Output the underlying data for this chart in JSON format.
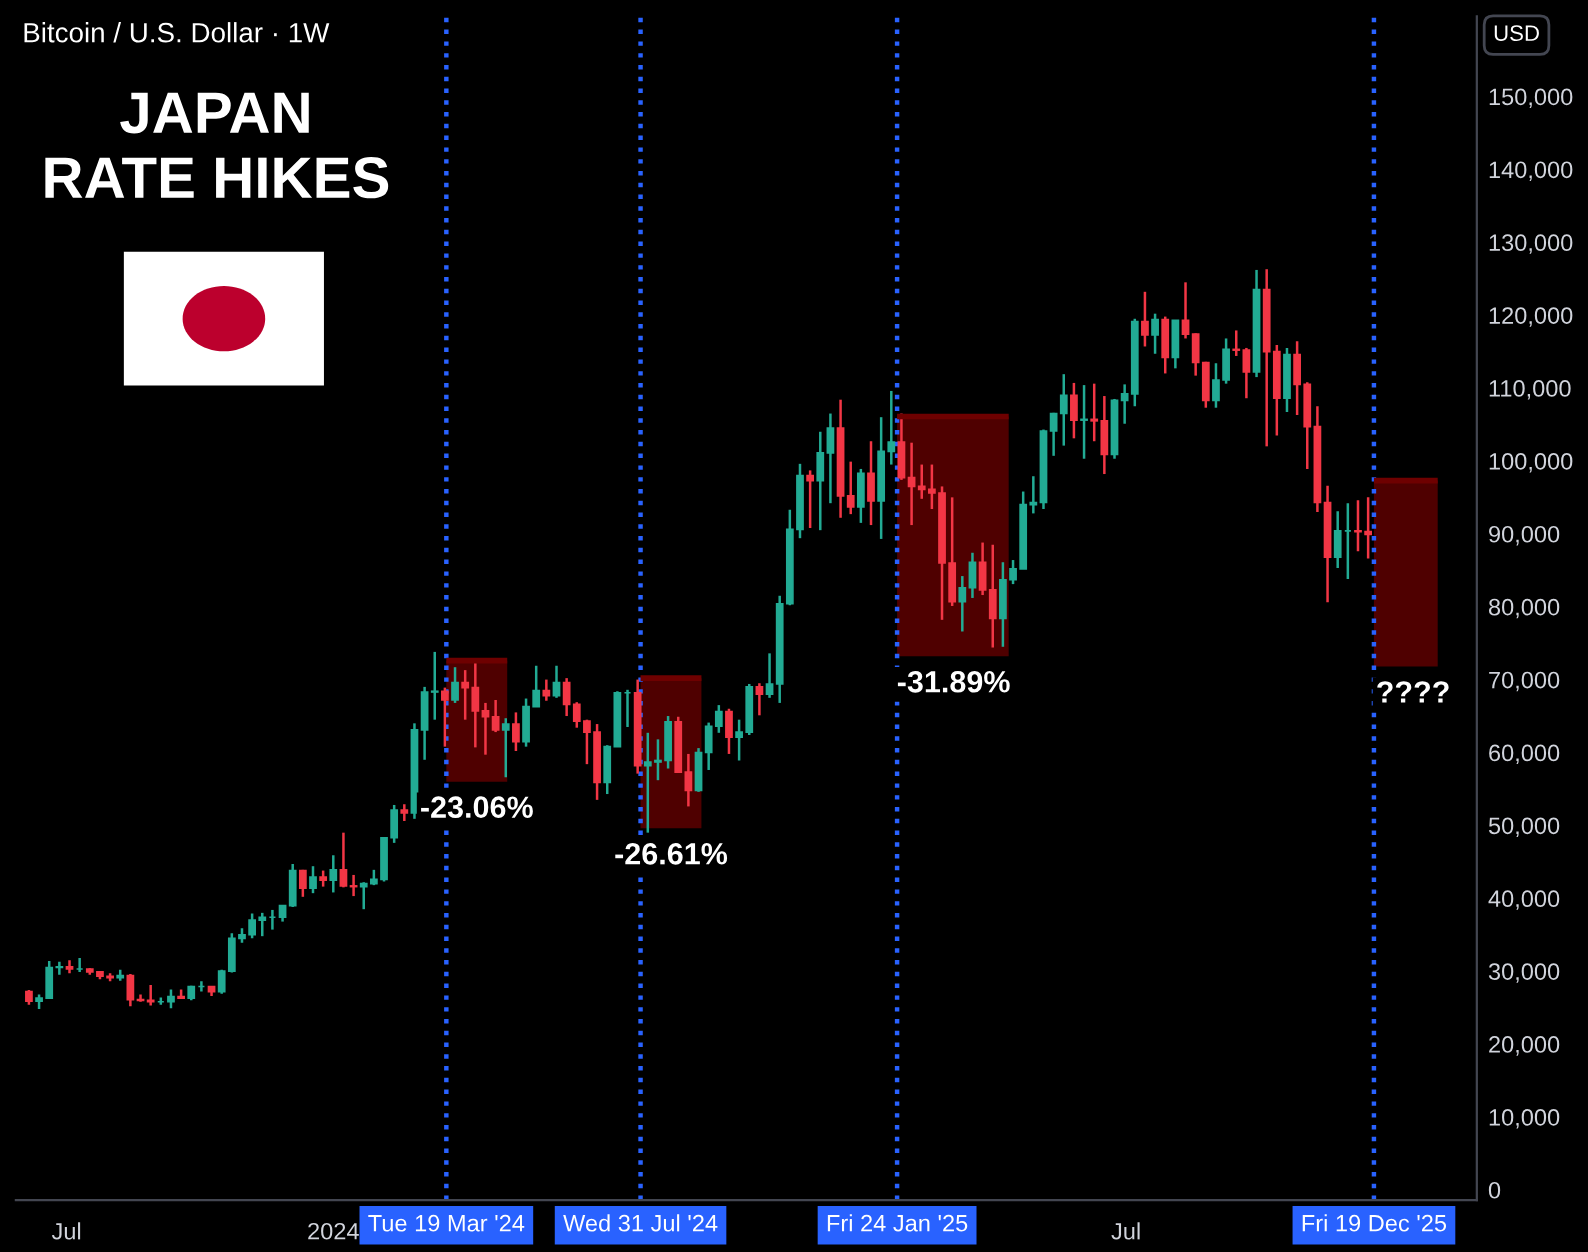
{
  "chart_data": {
    "type": "candlestick",
    "title": "Bitcoin / U.S. Dollar · 1W",
    "annotations": [
      "JAPAN\nRATE HIKES",
      "USD",
      {
        "text": "-23.06%",
        "x": "2024-04-09",
        "y": 56000
      },
      {
        "text": "-26.61%",
        "x": "2024-08-21",
        "y": 49600
      },
      {
        "text": "-31.89%",
        "x": "2025-03-04",
        "y": 73200
      },
      {
        "text": "????",
        "x": "2026-01-15",
        "y": 71800
      }
    ],
    "xlim": [
      "2023-05-27",
      "2026-02-28"
    ],
    "xticks": [
      {
        "value": "2023-07-01",
        "label": "Jul"
      },
      {
        "value": "2024-01-01",
        "label": "2024"
      },
      {
        "value": "2025-07-01",
        "label": "Jul"
      }
    ],
    "ylim": [
      -1400,
      161000
    ],
    "yticks": [
      0,
      {
        "value": 10000,
        "label": "10,000"
      },
      {
        "value": 20000,
        "label": "20,000"
      },
      {
        "value": 30000,
        "label": "30,000"
      },
      {
        "value": 40000,
        "label": "40,000"
      },
      {
        "value": 50000,
        "label": "50,000"
      },
      {
        "value": 60000,
        "label": "60,000"
      },
      {
        "value": 70000,
        "label": "70,000"
      },
      {
        "value": 80000,
        "label": "80,000"
      },
      {
        "value": 90000,
        "label": "90,000"
      },
      {
        "value": 100000,
        "label": "100,000"
      },
      {
        "value": 110000,
        "label": "110,000"
      },
      {
        "value": 120000,
        "label": "120,000"
      },
      {
        "value": 130000,
        "label": "130,000"
      },
      {
        "value": 140000,
        "label": "140,000"
      },
      {
        "value": 150000,
        "label": "150,000"
      }
    ],
    "grid": false,
    "ref_lines": [
      {
        "axis": "x",
        "value": "2024-03-19",
        "label": "Tue 19 Mar '24",
        "color": "#2962ff",
        "line_style": "dotted"
      },
      {
        "axis": "x",
        "value": "2024-07-31",
        "label": "Wed 31 Jul '24",
        "color": "#2962ff",
        "line_style": "dotted"
      },
      {
        "axis": "x",
        "value": "2025-01-24",
        "label": "Fri 24 Jan '25",
        "color": "#2962ff",
        "line_style": "dotted"
      },
      {
        "axis": "x",
        "value": "2025-12-19",
        "label": "Fri 19 Dec '25",
        "color": "#2962ff",
        "line_style": "dotted"
      }
    ],
    "series": [
      {
        "type": "line",
        "color": "#6e0000",
        "x": [
          "2024-03-19",
          "2024-04-30"
        ],
        "values": [
          72600,
          72600
        ],
        "lower": [
          56000,
          56000
        ],
        "upper": [
          72600,
          72600
        ]
      },
      {
        "type": "line",
        "color": "#6e0000",
        "x": [
          "2024-07-31",
          "2024-09-11"
        ],
        "values": [
          70200,
          70200
        ],
        "lower": [
          49600,
          49600
        ],
        "upper": [
          70200,
          70200
        ]
      },
      {
        "type": "line",
        "color": "#6e0000",
        "x": [
          "2025-01-24",
          "2025-04-11"
        ],
        "values": [
          106100,
          106100
        ],
        "lower": [
          73200,
          73200
        ],
        "upper": [
          106100,
          106100
        ]
      },
      {
        "type": "line",
        "color": "#6e0000",
        "x": [
          "2025-12-19",
          "2026-02-01"
        ],
        "values": [
          97300,
          97300
        ],
        "lower": [
          71800,
          71800
        ],
        "upper": [
          97300,
          97300
        ]
      },
      {
        "colors": [
          "#f23645",
          "#22ab94",
          "#22ab94",
          "#22ab94",
          "#f23645",
          "#22ab94",
          "#f23645",
          "#f23645",
          "#f23645",
          "#22ab94",
          "#f23645",
          "#f23645",
          "#f23645",
          "#22ab94",
          "#22ab94",
          "#f23645",
          "#22ab94",
          "#22ab94",
          "#f23645",
          "#22ab94",
          "#22ab94",
          "#22ab94",
          "#22ab94",
          "#22ab94",
          "#22ab94",
          "#22ab94",
          "#22ab94",
          "#f23645",
          "#22ab94",
          "#f23645",
          "#22ab94",
          "#f23645",
          "#f23645",
          "#22ab94",
          "#22ab94",
          "#22ab94",
          "#22ab94",
          "#f23645",
          "#22ab94",
          "#22ab94",
          "#22ab94",
          "#f23645",
          "#22ab94",
          "#f23645",
          "#f23645",
          "#f23645",
          "#f23645",
          "#22ab94",
          "#f23645",
          "#22ab94",
          "#22ab94",
          "#f23645",
          "#22ab94",
          "#f23645",
          "#f23645",
          "#f23645",
          "#f23645",
          "#22ab94",
          "#22ab94",
          "#22ab94",
          "#f23645",
          "#22ab94",
          "#22ab94",
          "#22ab94",
          "#f23645",
          "#f23645",
          "#22ab94",
          "#22ab94",
          "#22ab94",
          "#f23645",
          "#22ab94",
          "#22ab94",
          "#f23645",
          "#22ab94",
          "#22ab94",
          "#22ab94",
          "#22ab94",
          "#f23645",
          "#22ab94",
          "#22ab94",
          "#f23645",
          "#f23645",
          "#22ab94",
          "#f23645",
          "#22ab94",
          "#22ab94",
          "#f23645",
          "#f23645",
          "#f23645",
          "#f23645",
          "#f23645",
          "#f23645",
          "#22ab94",
          "#22ab94",
          "#f23645",
          "#f23645",
          "#22ab94",
          "#22ab94",
          "#22ab94",
          "#22ab94",
          "#22ab94",
          "#22ab94",
          "#22ab94",
          "#f23645",
          "#22ab94",
          "#f23645",
          "#f23645",
          "#22ab94",
          "#22ab94",
          "#22ab94",
          "#f23645",
          "#22ab94",
          "#f23645",
          "#22ab94",
          "#f23645",
          "#f23645",
          "#f23645",
          "#22ab94",
          "#22ab94",
          "#f23645",
          "#f23645",
          "#22ab94",
          "#f23645",
          "#f23645",
          "#22ab94",
          "#f23645",
          "#f23645",
          "#f23645",
          "#f23645",
          "#22ab94",
          "#22ab94",
          "#f23645",
          "#f23645"
        ],
        "x": [
          "2023-06-05",
          "2023-06-12",
          "2023-06-19",
          "2023-06-26",
          "2023-07-03",
          "2023-07-10",
          "2023-07-17",
          "2023-07-24",
          "2023-07-31",
          "2023-08-07",
          "2023-08-14",
          "2023-08-21",
          "2023-08-28",
          "2023-09-04",
          "2023-09-11",
          "2023-09-18",
          "2023-09-25",
          "2023-10-02",
          "2023-10-09",
          "2023-10-16",
          "2023-10-23",
          "2023-10-30",
          "2023-11-06",
          "2023-11-13",
          "2023-11-20",
          "2023-11-27",
          "2023-12-04",
          "2023-12-11",
          "2023-12-18",
          "2023-12-25",
          "2024-01-01",
          "2024-01-08",
          "2024-01-15",
          "2024-01-22",
          "2024-01-29",
          "2024-02-05",
          "2024-02-12",
          "2024-02-19",
          "2024-02-26",
          "2024-03-04",
          "2024-03-11",
          "2024-03-18",
          "2024-03-25",
          "2024-04-01",
          "2024-04-08",
          "2024-04-15",
          "2024-04-22",
          "2024-04-29",
          "2024-05-06",
          "2024-05-13",
          "2024-05-20",
          "2024-05-27",
          "2024-06-03",
          "2024-06-10",
          "2024-06-17",
          "2024-06-24",
          "2024-07-01",
          "2024-07-08",
          "2024-07-15",
          "2024-07-22",
          "2024-07-29",
          "2024-08-05",
          "2024-08-12",
          "2024-08-19",
          "2024-08-26",
          "2024-09-02",
          "2024-09-09",
          "2024-09-16",
          "2024-09-23",
          "2024-09-30",
          "2024-10-07",
          "2024-10-14",
          "2024-10-21",
          "2024-10-28",
          "2024-11-04",
          "2024-11-11",
          "2024-11-18",
          "2024-11-25",
          "2024-12-02",
          "2024-12-09",
          "2024-12-16",
          "2024-12-23",
          "2024-12-30",
          "2025-01-06",
          "2025-01-13",
          "2025-01-20",
          "2025-01-27",
          "2025-02-03",
          "2025-02-10",
          "2025-02-17",
          "2025-02-24",
          "2025-03-03",
          "2025-03-10",
          "2025-03-17",
          "2025-03-24",
          "2025-03-31",
          "2025-04-07",
          "2025-04-14",
          "2025-04-21",
          "2025-04-28",
          "2025-05-05",
          "2025-05-12",
          "2025-05-19",
          "2025-05-26",
          "2025-06-02",
          "2025-06-09",
          "2025-06-16",
          "2025-06-23",
          "2025-06-30",
          "2025-07-07",
          "2025-07-14",
          "2025-07-21",
          "2025-07-28",
          "2025-08-04",
          "2025-08-11",
          "2025-08-18",
          "2025-08-25",
          "2025-09-01",
          "2025-09-08",
          "2025-09-15",
          "2025-09-22",
          "2025-09-29",
          "2025-10-06",
          "2025-10-13",
          "2025-10-20",
          "2025-10-27",
          "2025-11-03",
          "2025-11-10",
          "2025-11-17",
          "2025-11-24",
          "2025-12-01",
          "2025-12-08",
          "2025-12-15"
        ],
        "ohlc": [
          [
            27200,
            27400,
            25400,
            25900
          ],
          [
            25900,
            26800,
            24800,
            26300
          ],
          [
            26300,
            31400,
            26300,
            30500
          ],
          [
            30500,
            31300,
            29500,
            30600
          ],
          [
            30600,
            31500,
            29700,
            30300
          ],
          [
            30300,
            31800,
            29900,
            30300
          ],
          [
            30300,
            30400,
            29500,
            29900
          ],
          [
            29900,
            30000,
            28900,
            29300
          ],
          [
            29300,
            29700,
            28600,
            29100
          ],
          [
            29100,
            30200,
            28700,
            29400
          ],
          [
            29400,
            29600,
            25200,
            26100
          ],
          [
            26100,
            26800,
            25800,
            26000
          ],
          [
            26000,
            28100,
            25300,
            25800
          ],
          [
            25800,
            26400,
            25400,
            25800
          ],
          [
            25800,
            27500,
            24900,
            26500
          ],
          [
            26500,
            27500,
            26300,
            26300
          ],
          [
            26300,
            28000,
            26000,
            27900
          ],
          [
            27900,
            28600,
            27200,
            27900
          ],
          [
            27900,
            27900,
            26600,
            27200
          ],
          [
            27200,
            30200,
            26900,
            30000
          ],
          [
            30000,
            35200,
            29800,
            34500
          ],
          [
            34500,
            35900,
            33900,
            35000
          ],
          [
            35000,
            37900,
            34500,
            37000
          ],
          [
            37000,
            38000,
            34800,
            37400
          ],
          [
            37400,
            38400,
            35700,
            37400
          ],
          [
            37400,
            39000,
            36800,
            39000
          ],
          [
            39000,
            44700,
            38800,
            43800
          ],
          [
            43800,
            43900,
            40200,
            41400
          ],
          [
            41400,
            44400,
            40700,
            42900
          ],
          [
            42900,
            43800,
            41600,
            42500
          ],
          [
            42500,
            45900,
            40800,
            43900
          ],
          [
            43900,
            49000,
            41500,
            41700
          ],
          [
            41700,
            43200,
            40300,
            41600
          ],
          [
            41600,
            42200,
            38500,
            42000
          ],
          [
            42000,
            43900,
            41800,
            42600
          ],
          [
            42600,
            48300,
            42300,
            48300
          ],
          [
            48300,
            52800,
            47600,
            52100
          ],
          [
            52100,
            52900,
            50600,
            51700
          ],
          [
            51700,
            64000,
            50900,
            63100
          ],
          [
            63100,
            69000,
            59000,
            68300
          ],
          [
            68300,
            73800,
            64500,
            68400
          ],
          [
            68400,
            68900,
            60800,
            67200
          ],
          [
            67200,
            71700,
            66800,
            69600
          ],
          [
            69600,
            71300,
            64500,
            68900
          ],
          [
            68900,
            72700,
            60700,
            65700
          ],
          [
            65700,
            66800,
            59700,
            64900
          ],
          [
            64900,
            67200,
            62800,
            63100
          ],
          [
            63100,
            64700,
            56600,
            63900
          ],
          [
            63900,
            65500,
            60200,
            61500
          ],
          [
            61500,
            67400,
            60800,
            66300
          ],
          [
            66300,
            71900,
            66300,
            68500
          ],
          [
            68500,
            70000,
            67100,
            67800
          ],
          [
            67800,
            71900,
            67500,
            69600
          ],
          [
            69600,
            70200,
            65000,
            66600
          ],
          [
            66600,
            66900,
            63400,
            64300
          ],
          [
            64300,
            64500,
            58400,
            62800
          ],
          [
            62800,
            63900,
            53500,
            55900
          ],
          [
            55900,
            61000,
            54300,
            60800
          ],
          [
            60800,
            68400,
            60800,
            68200
          ],
          [
            68200,
            68600,
            63500,
            68200
          ],
          [
            68200,
            70000,
            57100,
            58200
          ],
          [
            58200,
            62700,
            49000,
            58700
          ],
          [
            58700,
            61800,
            56200,
            58900
          ],
          [
            58900,
            65000,
            57800,
            64200
          ],
          [
            64200,
            64900,
            57200,
            57300
          ],
          [
            57300,
            59800,
            52600,
            54800
          ],
          [
            54800,
            60600,
            54600,
            60000
          ],
          [
            60000,
            64100,
            57600,
            63600
          ],
          [
            63600,
            66500,
            62700,
            65600
          ],
          [
            65600,
            66000,
            59800,
            62100
          ],
          [
            62100,
            64500,
            58900,
            62800
          ],
          [
            62800,
            69400,
            62400,
            69000
          ],
          [
            69000,
            69500,
            65100,
            68000
          ],
          [
            68000,
            73600,
            67500,
            69400
          ],
          [
            69400,
            81500,
            66800,
            80400
          ],
          [
            80400,
            93300,
            80200,
            90600
          ],
          [
            90600,
            99600,
            89400,
            98000
          ],
          [
            98000,
            98700,
            90800,
            97300
          ],
          [
            97300,
            104000,
            90500,
            101100
          ],
          [
            101100,
            106500,
            94200,
            104500
          ],
          [
            104500,
            108400,
            92200,
            95200
          ],
          [
            95200,
            99900,
            92700,
            93700
          ],
          [
            93700,
            98900,
            91500,
            98300
          ],
          [
            98300,
            102700,
            91200,
            94500
          ],
          [
            94500,
            106000,
            89300,
            101300
          ],
          [
            101300,
            109600,
            99500,
            102600
          ],
          [
            102600,
            106500,
            97400,
            97700
          ],
          [
            97700,
            102500,
            91200,
            96500
          ],
          [
            96500,
            99500,
            94800,
            96100
          ],
          [
            96100,
            99500,
            93400,
            95600
          ],
          [
            95600,
            96500,
            78200,
            86000
          ],
          [
            86000,
            95000,
            80100,
            80700
          ],
          [
            80700,
            84200,
            76600,
            82600
          ],
          [
            82600,
            87400,
            81200,
            86100
          ],
          [
            86100,
            88800,
            81600,
            82300
          ],
          [
            82300,
            88500,
            74400,
            78400
          ],
          [
            78400,
            86100,
            74500,
            83700
          ],
          [
            83700,
            86400,
            83100,
            85200
          ],
          [
            85200,
            95800,
            85200,
            94000
          ],
          [
            94000,
            97900,
            92800,
            94300
          ],
          [
            94300,
            104300,
            93400,
            104100
          ],
          [
            104100,
            106600,
            100700,
            106500
          ],
          [
            106500,
            111900,
            102100,
            109000
          ],
          [
            109000,
            110700,
            103100,
            105600
          ],
          [
            105600,
            110400,
            100300,
            105700
          ],
          [
            105700,
            110600,
            102700,
            105500
          ],
          [
            105500,
            108900,
            98200,
            100900
          ],
          [
            100900,
            108500,
            100300,
            108300
          ],
          [
            108300,
            110500,
            105100,
            109200
          ],
          [
            109200,
            119500,
            107500,
            119100
          ],
          [
            119100,
            123200,
            115700,
            117300
          ],
          [
            117300,
            120200,
            114700,
            119400
          ],
          [
            119400,
            119800,
            112000,
            114200
          ],
          [
            114200,
            119300,
            112700,
            119300
          ],
          [
            119300,
            124500,
            116800,
            117400
          ],
          [
            117400,
            117500,
            111700,
            113500
          ],
          [
            113500,
            113600,
            107300,
            108300
          ],
          [
            108300,
            113400,
            107300,
            111100
          ],
          [
            111100,
            116800,
            110600,
            115300
          ],
          [
            115300,
            117900,
            114400,
            115200
          ],
          [
            115200,
            115500,
            108600,
            112200
          ],
          [
            112200,
            126200,
            111500,
            123500
          ],
          [
            123500,
            126300,
            102000,
            115000
          ],
          [
            115000,
            115900,
            103500,
            108600
          ],
          [
            108600,
            115500,
            106700,
            114600
          ],
          [
            114600,
            116400,
            106300,
            110500
          ],
          [
            110500,
            110800,
            98900,
            104700
          ],
          [
            104700,
            107500,
            93000,
            94300
          ],
          [
            94300,
            96600,
            80600,
            86800
          ],
          [
            86800,
            93100,
            85300,
            90400
          ],
          [
            90400,
            94200,
            83800,
            90400
          ],
          [
            90400,
            94600,
            87600,
            90300
          ],
          [
            90300,
            95000,
            86600,
            89900
          ]
        ]
      }
    ]
  }
}
